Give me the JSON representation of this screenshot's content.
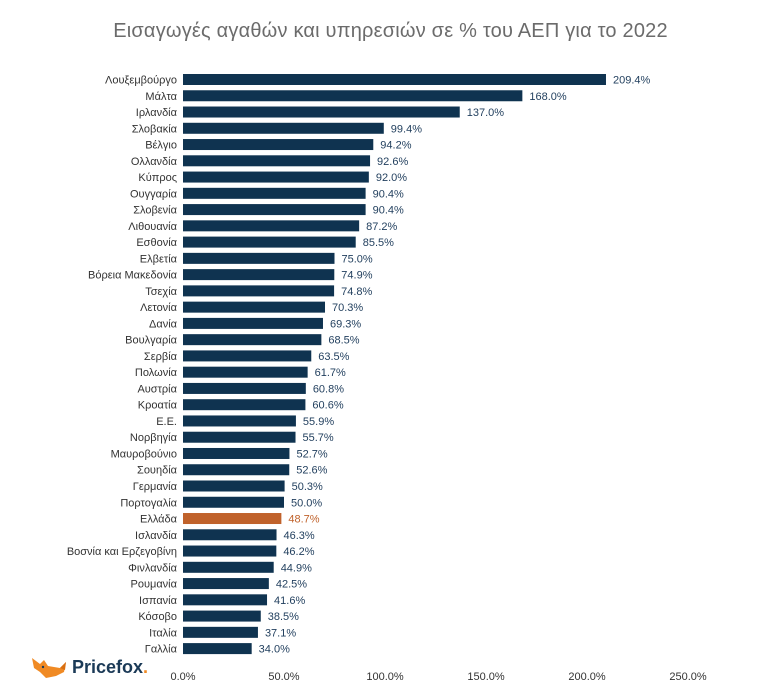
{
  "chart_data": {
    "type": "bar",
    "orientation": "horizontal",
    "title": "Εισαγωγές αγαθών και υπηρεσιών σε % του ΑΕΠ για το 2022",
    "categories": [
      "Λουξεμβούργο",
      "Μάλτα",
      "Ιρλανδία",
      "Σλοβακία",
      "Βέλγιο",
      "Ολλανδία",
      "Κύπρος",
      "Ουγγαρία",
      "Σλοβενία",
      "Λιθουανία",
      "Εσθονία",
      "Ελβετία",
      "Βόρεια Μακεδονία",
      "Τσεχία",
      "Λετονία",
      "Δανία",
      "Βουλγαρία",
      "Σερβία",
      "Πολωνία",
      "Αυστρία",
      "Κροατία",
      "Ε.Ε.",
      "Νορβηγία",
      "Μαυροβούνιο",
      "Σουηδία",
      "Γερμανία",
      "Πορτογαλία",
      "Ελλάδα",
      "Ισλανδία",
      "Βοσνία και Ερζεγοβίνη",
      "Φινλανδία",
      "Ρουμανία",
      "Ισπανία",
      "Κόσοβο",
      "Ιταλία",
      "Γαλλία"
    ],
    "values": [
      209.4,
      168.0,
      137.0,
      99.4,
      94.2,
      92.6,
      92.0,
      90.4,
      90.4,
      87.2,
      85.5,
      75.0,
      74.9,
      74.8,
      70.3,
      69.3,
      68.5,
      63.5,
      61.7,
      60.8,
      60.6,
      55.9,
      55.7,
      52.7,
      52.6,
      50.3,
      50.0,
      48.7,
      46.3,
      46.2,
      44.9,
      42.5,
      41.6,
      38.5,
      37.1,
      34.0
    ],
    "value_labels": [
      "209.4%",
      "168.0%",
      "137.0%",
      "99.4%",
      "94.2%",
      "92.6%",
      "92.0%",
      "90.4%",
      "90.4%",
      "87.2%",
      "85.5%",
      "75.0%",
      "74.9%",
      "74.8%",
      "70.3%",
      "69.3%",
      "68.5%",
      "63.5%",
      "61.7%",
      "60.8%",
      "60.6%",
      "55.9%",
      "55.7%",
      "52.7%",
      "52.6%",
      "50.3%",
      "50.0%",
      "48.7%",
      "46.3%",
      "46.2%",
      "44.9%",
      "42.5%",
      "41.6%",
      "38.5%",
      "37.1%",
      "34.0%"
    ],
    "highlight": "Ελλάδα",
    "xlim": [
      0,
      250
    ],
    "xticks": [
      0,
      50,
      100,
      150,
      200,
      250
    ],
    "xtick_labels": [
      "0.0%",
      "50.0%",
      "100.0%",
      "150.0%",
      "200.0%",
      "250.0%"
    ],
    "grid": false,
    "colors": {
      "bar": "#0f3350",
      "highlight": "#c0622b",
      "label": "#1f3d5c",
      "highlight_label": "#c0622b"
    }
  },
  "logo": {
    "text": "Pricefox",
    "dot": "."
  }
}
